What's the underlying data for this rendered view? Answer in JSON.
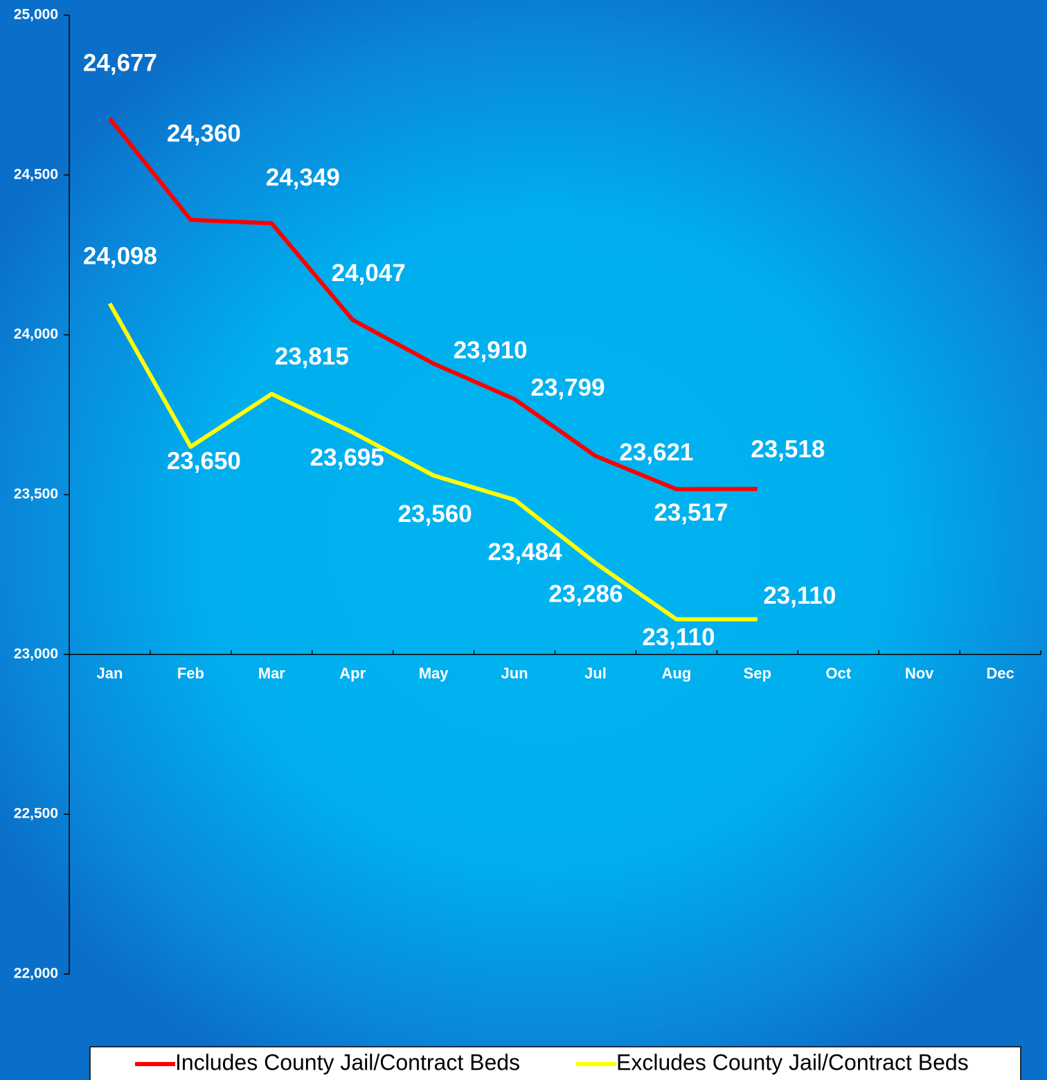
{
  "chart_data": {
    "type": "line",
    "categories": [
      "Jan",
      "Feb",
      "Mar",
      "Apr",
      "May",
      "Jun",
      "Jul",
      "Aug",
      "Sep",
      "Oct",
      "Nov",
      "Dec"
    ],
    "series": [
      {
        "name": "Includes County Jail/Contract Beds",
        "color": "#ff0000",
        "values": [
          24677,
          24360,
          24349,
          24047,
          23910,
          23799,
          23621,
          23517,
          23518,
          null,
          null,
          null
        ],
        "value_labels": [
          "24,677",
          "24,360",
          "24,349",
          "24,047",
          "23,910",
          "23,799",
          "23,621",
          "23,517",
          "23,518",
          null,
          null,
          null
        ]
      },
      {
        "name": "Excludes County Jail/Contract Beds",
        "color": "#ffff00",
        "values": [
          24098,
          23650,
          23815,
          23695,
          23560,
          23484,
          23286,
          23110,
          23110,
          null,
          null,
          null
        ],
        "value_labels": [
          "24,098",
          "23,650",
          "23,815",
          "23,695",
          "23,560",
          "23,484",
          "23,286",
          "23,110",
          "23,110",
          null,
          null,
          null
        ]
      }
    ],
    "ylim": [
      22000,
      25000
    ],
    "yticks": [
      {
        "value": 22000,
        "label": "22,000"
      },
      {
        "value": 22500,
        "label": "22,500"
      },
      {
        "value": 23000,
        "label": "23,000"
      },
      {
        "value": 23500,
        "label": "23,500"
      },
      {
        "value": 24000,
        "label": "24,000"
      },
      {
        "value": 24500,
        "label": "24,500"
      },
      {
        "value": 25000,
        "label": "25,000"
      }
    ],
    "category_axis_at": 23000,
    "legend": "bottom"
  }
}
